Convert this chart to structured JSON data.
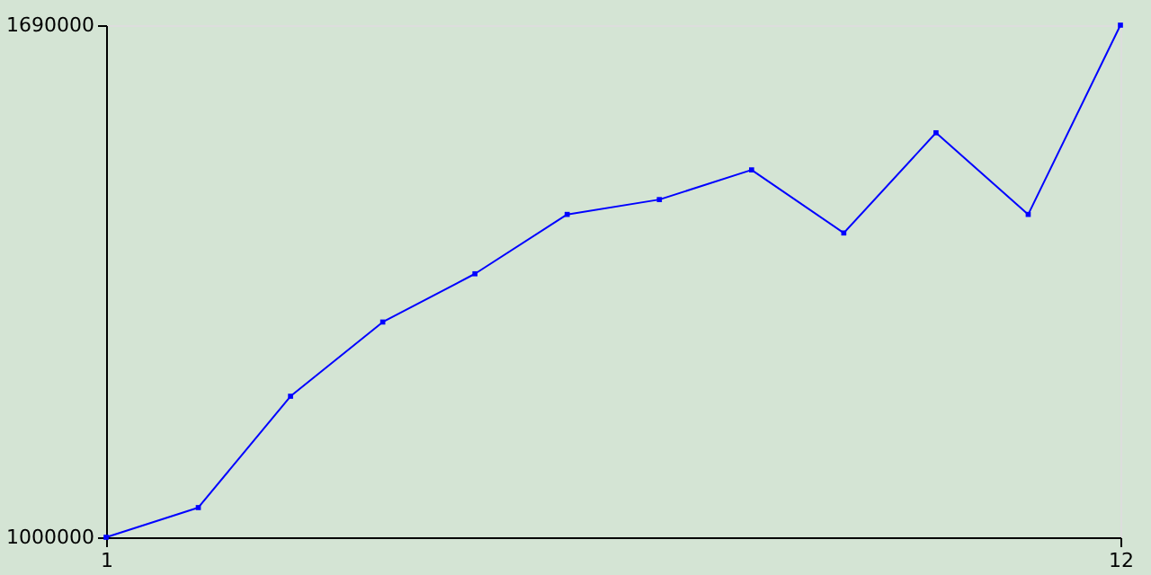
{
  "chart_data": {
    "type": "line",
    "x": [
      1,
      2,
      3,
      4,
      5,
      6,
      7,
      8,
      9,
      10,
      11,
      12
    ],
    "series": [
      {
        "color": "#0000ff",
        "values": [
          1000000,
          1040000,
          1190000,
          1290000,
          1355000,
          1435000,
          1455000,
          1495000,
          1410000,
          1545000,
          1435000,
          1690000
        ]
      }
    ],
    "xlim": [
      1,
      12
    ],
    "xticks": [
      1,
      12
    ],
    "ylim": [
      1000000,
      1690000
    ],
    "yticks": [
      {
        "value": 1000000,
        "label": "1000000"
      },
      {
        "value": 1690000,
        "label": "1690000"
      }
    ],
    "legend": false,
    "marker": "square",
    "line_style": "solid"
  }
}
